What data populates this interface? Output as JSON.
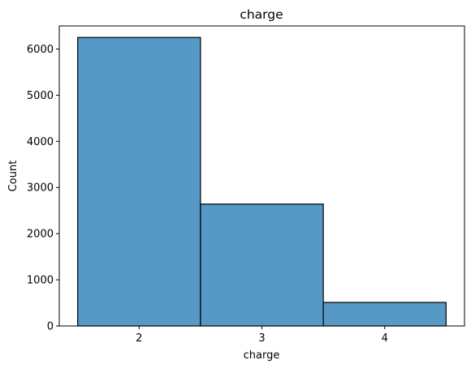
{
  "chart_data": {
    "type": "bar",
    "title": "charge",
    "xlabel": "charge",
    "ylabel": "Count",
    "categories": [
      "2",
      "3",
      "4"
    ],
    "values": [
      6250,
      2640,
      510
    ],
    "ylim": [
      0,
      6500
    ],
    "yticks": [
      0,
      1000,
      2000,
      3000,
      4000,
      5000,
      6000
    ],
    "grid": false,
    "colors": {
      "bar_fill": "#5799c6",
      "bar_edge": "#000000"
    }
  }
}
